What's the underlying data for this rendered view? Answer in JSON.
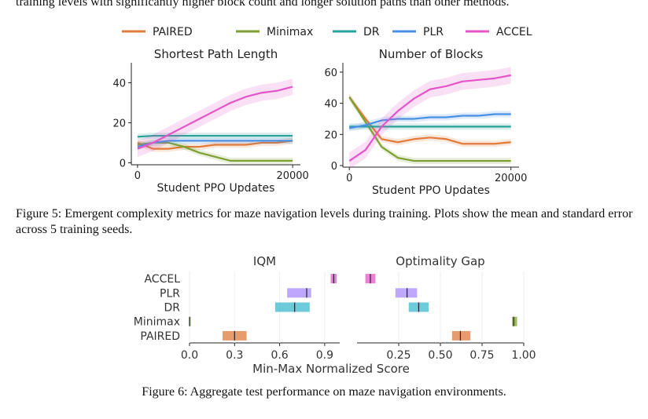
{
  "text": {
    "top_line": "training levels with significantly higher block count and longer solution paths than other methods.",
    "fig5_caption": "Figure 5: Emergent complexity metrics for maze navigation levels during training. Plots show the mean and standard error across 5 training seeds.",
    "fig6_caption": "Figure 6: Aggregate test performance on maze navigation environments."
  },
  "colors": {
    "PAIRED": "#e07b39",
    "Minimax": "#7ea032",
    "DR": "#2aa198",
    "PLR": "#4a90e2",
    "ACCEL": "#e455c8",
    "PLR_bar": "#a78bfa",
    "DR_bar": "#3bb8cc"
  },
  "chart_data": [
    {
      "type": "line",
      "title": "Shortest Path Length",
      "xlabel": "Student PPO Updates",
      "ylabel": "",
      "xlim": [
        -800,
        21000
      ],
      "ylim": [
        -1,
        50
      ],
      "xticks": [
        0,
        20000
      ],
      "yticks": [
        0,
        20,
        40
      ],
      "legend_position": "top",
      "x": [
        0,
        2000,
        4000,
        6000,
        8000,
        10000,
        12000,
        14000,
        16000,
        18000,
        20000
      ],
      "series": [
        {
          "name": "PAIRED",
          "values": [
            10,
            7,
            7,
            8,
            8,
            9,
            9,
            9,
            10,
            10,
            11
          ]
        },
        {
          "name": "Minimax",
          "values": [
            9,
            10,
            10,
            8,
            5,
            3,
            1,
            1,
            1,
            1,
            1
          ]
        },
        {
          "name": "DR",
          "values": [
            13,
            13.5,
            13.5,
            13.5,
            13.5,
            13.5,
            13.5,
            13.5,
            13.5,
            13.5,
            13.5
          ]
        },
        {
          "name": "PLR",
          "values": [
            8,
            10,
            11,
            11,
            11,
            11,
            11,
            11,
            11,
            11,
            11
          ]
        },
        {
          "name": "ACCEL",
          "values": [
            7,
            10,
            14,
            18,
            22,
            26,
            30,
            33,
            35,
            36,
            38
          ]
        }
      ]
    },
    {
      "type": "line",
      "title": "Number of Blocks",
      "xlabel": "Student PPO Updates",
      "ylabel": "",
      "xlim": [
        -800,
        21000
      ],
      "ylim": [
        -1,
        66
      ],
      "xticks": [
        0,
        20000
      ],
      "yticks": [
        0,
        20,
        40,
        60
      ],
      "x": [
        0,
        2000,
        4000,
        6000,
        8000,
        10000,
        12000,
        14000,
        16000,
        18000,
        20000
      ],
      "series": [
        {
          "name": "PAIRED",
          "values": [
            44,
            30,
            17,
            15,
            17,
            18,
            17,
            14,
            14,
            14,
            15
          ]
        },
        {
          "name": "Minimax",
          "values": [
            44,
            28,
            12,
            5,
            3,
            3,
            3,
            3,
            3,
            3,
            3
          ]
        },
        {
          "name": "DR",
          "values": [
            25,
            25,
            25,
            25,
            25,
            25,
            25,
            25,
            25,
            25,
            25
          ]
        },
        {
          "name": "PLR",
          "values": [
            24,
            26,
            29,
            30,
            30,
            31,
            31,
            32,
            32,
            33,
            33
          ]
        },
        {
          "name": "ACCEL",
          "values": [
            3,
            10,
            25,
            35,
            43,
            49,
            51,
            54,
            55,
            56,
            58
          ]
        }
      ]
    },
    {
      "type": "bar",
      "title": "IQM",
      "xlabel": "Min-Max Normalized Score",
      "categories": [
        "ACCEL",
        "PLR",
        "DR",
        "Minimax",
        "PAIRED"
      ],
      "xlim": [
        0,
        1.0
      ],
      "xticks": [
        "0.0",
        "0.3",
        "0.6",
        "0.9"
      ],
      "series": [
        {
          "name": "ACCEL",
          "point": 0.96,
          "ci": [
            0.94,
            0.98
          ]
        },
        {
          "name": "PLR",
          "point": 0.78,
          "ci": [
            0.65,
            0.81
          ]
        },
        {
          "name": "DR",
          "point": 0.7,
          "ci": [
            0.57,
            0.8
          ]
        },
        {
          "name": "Minimax",
          "point": 0.0,
          "ci": [
            0.0,
            0.0
          ]
        },
        {
          "name": "PAIRED",
          "point": 0.3,
          "ci": [
            0.22,
            0.38
          ]
        }
      ]
    },
    {
      "type": "bar",
      "title": "Optimality Gap",
      "xlabel": "",
      "categories": [
        "ACCEL",
        "PLR",
        "DR",
        "Minimax",
        "PAIRED"
      ],
      "xlim": [
        0,
        1.0
      ],
      "xticks": [
        "0.25",
        "0.50",
        "0.75",
        "1.00"
      ],
      "series": [
        {
          "name": "ACCEL",
          "point": 0.08,
          "ci": [
            0.05,
            0.11
          ]
        },
        {
          "name": "PLR",
          "point": 0.3,
          "ci": [
            0.23,
            0.36
          ]
        },
        {
          "name": "DR",
          "point": 0.37,
          "ci": [
            0.31,
            0.43
          ]
        },
        {
          "name": "Minimax",
          "point": 0.94,
          "ci": [
            0.93,
            0.96
          ]
        },
        {
          "name": "PAIRED",
          "point": 0.62,
          "ci": [
            0.57,
            0.68
          ]
        }
      ]
    }
  ]
}
